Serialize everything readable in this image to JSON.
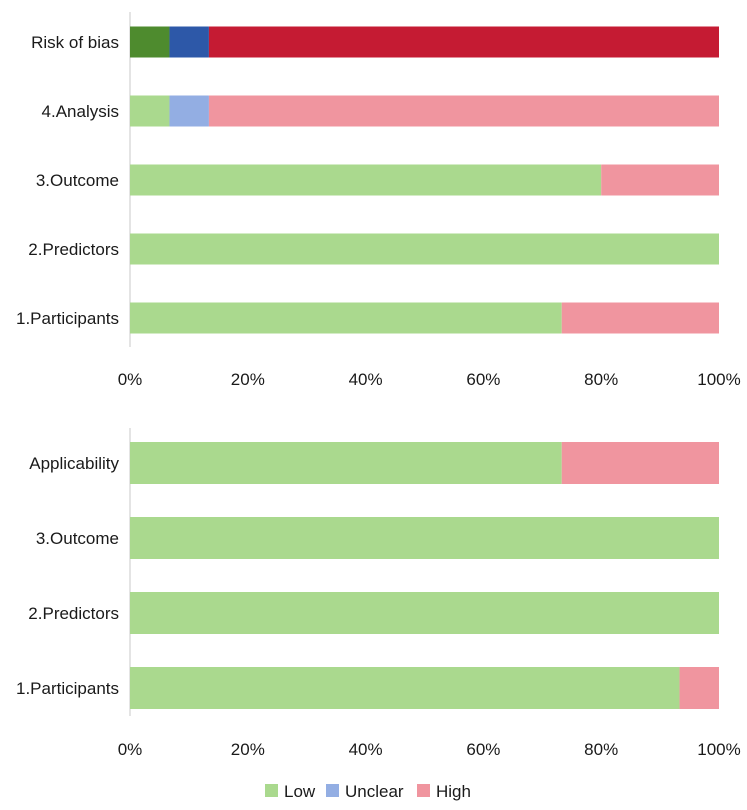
{
  "chart_data": [
    {
      "type": "bar",
      "orientation": "horizontal",
      "stacked": true,
      "title": "",
      "categories": [
        "Risk of bias",
        "4.Analysis",
        "3.Outcome",
        "2.Predictors",
        "1.Participants"
      ],
      "series": [
        {
          "name": "Low",
          "values": [
            6.7,
            6.7,
            80,
            100,
            73.3
          ],
          "colors": [
            "#4e8b2e",
            "#aad98e",
            "#aad98e",
            "#aad98e",
            "#aad98e"
          ]
        },
        {
          "name": "Unclear",
          "values": [
            6.7,
            6.7,
            0,
            0,
            0
          ],
          "colors": [
            "#2d58a8",
            "#93aee3",
            "#93aee3",
            "#93aee3",
            "#93aee3"
          ]
        },
        {
          "name": "High",
          "values": [
            86.6,
            86.6,
            20,
            0,
            26.7
          ],
          "colors": [
            "#c51b33",
            "#f0959f",
            "#f0959f",
            "#f0959f",
            "#f0959f"
          ]
        }
      ],
      "xlim": [
        0,
        100
      ],
      "xticks": [
        "0%",
        "20%",
        "40%",
        "60%",
        "80%",
        "100%"
      ],
      "xlabel": "",
      "ylabel": ""
    },
    {
      "type": "bar",
      "orientation": "horizontal",
      "stacked": true,
      "title": "",
      "categories": [
        "Applicability",
        "3.Outcome",
        "2.Predictors",
        "1.Participants"
      ],
      "series": [
        {
          "name": "Low",
          "values": [
            73.3,
            100,
            100,
            93.3
          ],
          "colors": [
            "#aad98e",
            "#aad98e",
            "#aad98e",
            "#aad98e"
          ]
        },
        {
          "name": "Unclear",
          "values": [
            0,
            0,
            0,
            0
          ],
          "colors": [
            "#93aee3",
            "#93aee3",
            "#93aee3",
            "#93aee3"
          ]
        },
        {
          "name": "High",
          "values": [
            26.7,
            0,
            0,
            6.7
          ],
          "colors": [
            "#f0959f",
            "#f0959f",
            "#f0959f",
            "#f0959f"
          ]
        }
      ],
      "xlim": [
        0,
        100
      ],
      "xticks": [
        "0%",
        "20%",
        "40%",
        "60%",
        "80%",
        "100%"
      ],
      "xlabel": "",
      "ylabel": ""
    }
  ],
  "legend": {
    "items": [
      {
        "label": "Low",
        "color": "#aad98e"
      },
      {
        "label": "Unclear",
        "color": "#93aee3"
      },
      {
        "label": "High",
        "color": "#f0959f"
      }
    ]
  }
}
